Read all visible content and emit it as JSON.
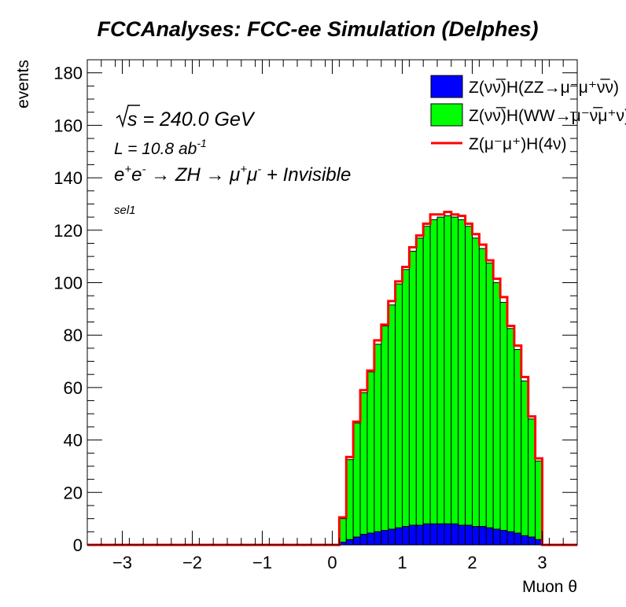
{
  "chart_data": {
    "type": "bar",
    "title": "FCCAnalyses: FCC-ee Simulation (Delphes)",
    "xlabel": "Muon θ",
    "ylabel": "events",
    "xlim": [
      -3.5,
      3.5
    ],
    "ylim": [
      0,
      185
    ],
    "x_ticks": [
      -3,
      -2,
      -1,
      0,
      1,
      2,
      3
    ],
    "x_tick_labels": [
      "−3",
      "−2",
      "−1",
      "0",
      "1",
      "2",
      "3"
    ],
    "y_ticks": [
      0,
      20,
      40,
      60,
      80,
      100,
      120,
      140,
      160,
      180
    ],
    "y_tick_labels": [
      "0",
      "20",
      "40",
      "60",
      "80",
      "100",
      "120",
      "140",
      "160",
      "180"
    ],
    "stacked": true,
    "bin_width": 0.1,
    "bin_starts": [
      0.1,
      0.2,
      0.3,
      0.4,
      0.5,
      0.6,
      0.7,
      0.8,
      0.9,
      1.0,
      1.1,
      1.2,
      1.3,
      1.4,
      1.5,
      1.6,
      1.7,
      1.8,
      1.9,
      2.0,
      2.1,
      2.2,
      2.3,
      2.4,
      2.5,
      2.6,
      2.7,
      2.8,
      2.9
    ],
    "series": [
      {
        "name": "Z(νν̅)H(ZZ→μ⁻μ⁺ν̅ν)",
        "style": "fill",
        "color": "#0000ff",
        "values": [
          1.0,
          2.0,
          3.0,
          4.0,
          4.5,
          5.0,
          5.5,
          6.0,
          6.5,
          7.0,
          7.5,
          7.5,
          8.0,
          8.0,
          8.0,
          8.0,
          8.0,
          7.5,
          7.5,
          7.0,
          7.0,
          6.5,
          6.0,
          5.5,
          5.0,
          4.5,
          3.5,
          3.0,
          2.0
        ]
      },
      {
        "name": "Z(νν̅)H(WW→μ⁻ν̅μ⁺ν)",
        "style": "fill",
        "color": "#00ff00",
        "values": [
          9.0,
          30.5,
          43.5,
          54.0,
          61.5,
          71.5,
          78.0,
          85.5,
          93.0,
          98.0,
          104.5,
          109.5,
          113.5,
          116.0,
          117.0,
          117.5,
          117.0,
          116.5,
          114.0,
          110.0,
          106.0,
          101.0,
          94.0,
          87.0,
          77.5,
          70.0,
          59.0,
          45.0,
          30.0
        ]
      },
      {
        "name": "Z(μ⁻μ⁺)H(4ν)",
        "style": "line",
        "color": "#ff0000",
        "values": [
          0.5,
          1.0,
          0.5,
          1.0,
          0.5,
          1.5,
          0.5,
          1.5,
          1.0,
          1.0,
          1.5,
          1.0,
          1.0,
          2.0,
          1.0,
          1.5,
          1.0,
          1.5,
          1.0,
          1.5,
          1.5,
          1.0,
          1.5,
          2.0,
          1.0,
          1.5,
          1.5,
          1.0,
          1.0
        ]
      }
    ],
    "annotations": {
      "sqrt_s": "240.0 GeV",
      "lumi": "10.8",
      "lumi_unit": "ab",
      "lumi_exp": "-1",
      "process_a": "e",
      "process_b": "ZH",
      "process_c": "+ Invisible",
      "selection": "sel1"
    },
    "legend_position": "top-right",
    "grid": false
  }
}
